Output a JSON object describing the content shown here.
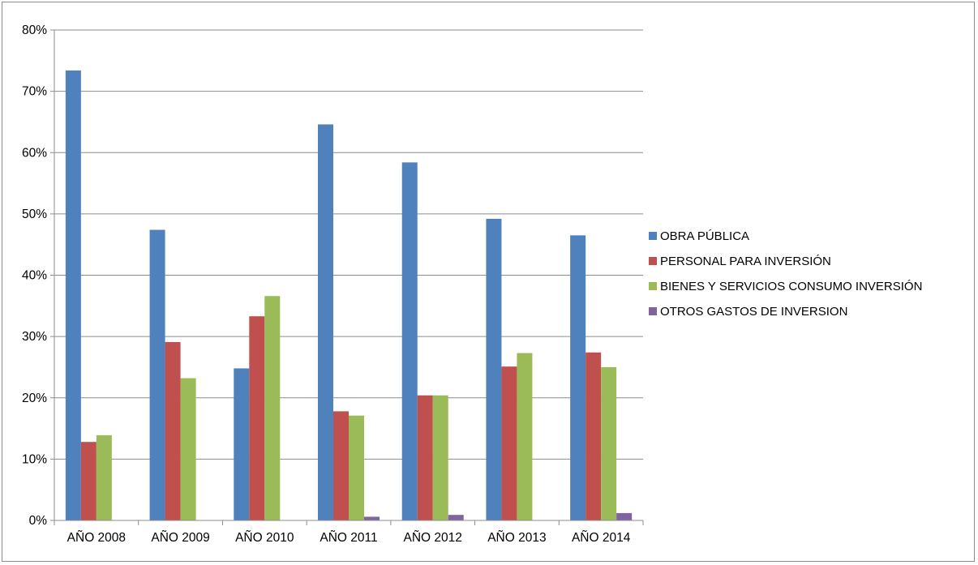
{
  "chart_data": {
    "type": "bar",
    "categories": [
      "AÑO 2008",
      "AÑO 2009",
      "AÑO 2010",
      "AÑO 2011",
      "AÑO 2012",
      "AÑO 2013",
      "AÑO 2014"
    ],
    "series": [
      {
        "name": "OBRA PÚBLICA",
        "color": "#4f81bd",
        "values": [
          73.4,
          47.4,
          24.8,
          64.6,
          58.4,
          49.2,
          46.5
        ]
      },
      {
        "name": "PERSONAL PARA INVERSIÓN",
        "color": "#c0504d",
        "values": [
          12.8,
          29.1,
          33.3,
          17.8,
          20.4,
          25.1,
          27.4
        ]
      },
      {
        "name": "BIENES Y SERVICIOS CONSUMO INVERSIÓN",
        "color": "#9bbb59",
        "values": [
          13.9,
          23.2,
          36.6,
          17.1,
          20.4,
          27.3,
          25.0
        ]
      },
      {
        "name": "OTROS GASTOS DE INVERSION",
        "color": "#8064a2",
        "values": [
          0,
          0,
          0,
          0.6,
          0.9,
          0,
          1.2
        ]
      }
    ],
    "ylim": [
      0,
      80
    ],
    "yticks": [
      "0%",
      "10%",
      "20%",
      "30%",
      "40%",
      "50%",
      "60%",
      "70%",
      "80%"
    ],
    "title": "",
    "xlabel": "",
    "ylabel": "",
    "grid": "horizontal",
    "legend_position": "right"
  }
}
